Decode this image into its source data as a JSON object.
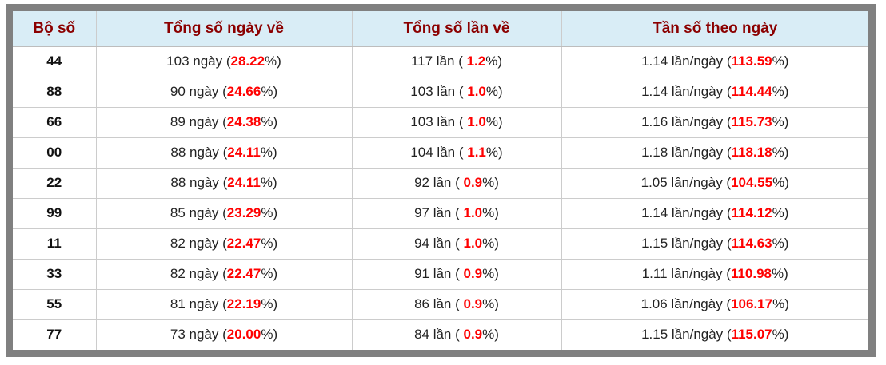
{
  "table": {
    "colors": {
      "header_bg": "#d9edf6",
      "header_text": "#8b0000",
      "highlight_red": "#ff0000",
      "frame_gray": "#808080"
    },
    "percent_close": "%)",
    "columns": [
      {
        "label": "Bộ số"
      },
      {
        "label": "Tổng số ngày về"
      },
      {
        "label": "Tổng số lần về"
      },
      {
        "label": "Tần số theo ngày"
      }
    ],
    "rows": [
      {
        "pair": "44",
        "days_text": "103 ngày (",
        "days_pct": "28.22",
        "times_text": "117 lần ( ",
        "times_pct": "1.2",
        "freq_text": "1.14 lần/ngày (",
        "freq_pct": "113.59"
      },
      {
        "pair": "88",
        "days_text": "90 ngày (",
        "days_pct": "24.66",
        "times_text": "103 lần ( ",
        "times_pct": "1.0",
        "freq_text": "1.14 lần/ngày (",
        "freq_pct": "114.44"
      },
      {
        "pair": "66",
        "days_text": "89 ngày (",
        "days_pct": "24.38",
        "times_text": "103 lần ( ",
        "times_pct": "1.0",
        "freq_text": "1.16 lần/ngày (",
        "freq_pct": "115.73"
      },
      {
        "pair": "00",
        "days_text": "88 ngày (",
        "days_pct": "24.11",
        "times_text": "104 lần ( ",
        "times_pct": "1.1",
        "freq_text": "1.18 lần/ngày (",
        "freq_pct": "118.18"
      },
      {
        "pair": "22",
        "days_text": "88 ngày (",
        "days_pct": "24.11",
        "times_text": "92 lần ( ",
        "times_pct": "0.9",
        "freq_text": "1.05 lần/ngày (",
        "freq_pct": "104.55"
      },
      {
        "pair": "99",
        "days_text": "85 ngày (",
        "days_pct": "23.29",
        "times_text": "97 lần ( ",
        "times_pct": "1.0",
        "freq_text": "1.14 lần/ngày (",
        "freq_pct": "114.12"
      },
      {
        "pair": "11",
        "days_text": "82 ngày (",
        "days_pct": "22.47",
        "times_text": "94 lần ( ",
        "times_pct": "1.0",
        "freq_text": "1.15 lần/ngày (",
        "freq_pct": "114.63"
      },
      {
        "pair": "33",
        "days_text": "82 ngày (",
        "days_pct": "22.47",
        "times_text": "91 lần ( ",
        "times_pct": "0.9",
        "freq_text": "1.11 lần/ngày (",
        "freq_pct": "110.98"
      },
      {
        "pair": "55",
        "days_text": "81 ngày (",
        "days_pct": "22.19",
        "times_text": "86 lần ( ",
        "times_pct": "0.9",
        "freq_text": "1.06 lần/ngày (",
        "freq_pct": "106.17"
      },
      {
        "pair": "77",
        "days_text": "73 ngày (",
        "days_pct": "20.00",
        "times_text": "84 lần ( ",
        "times_pct": "0.9",
        "freq_text": "1.15 lần/ngày (",
        "freq_pct": "115.07"
      }
    ]
  }
}
